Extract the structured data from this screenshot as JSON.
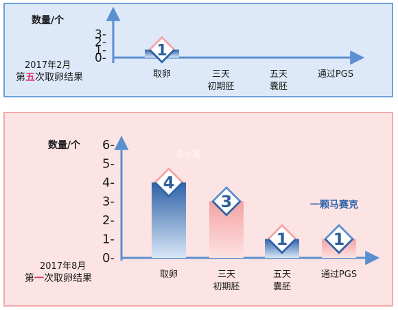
{
  "chart_data": [
    {
      "type": "bar",
      "ylabel": "数量/个",
      "ylim": [
        0,
        3
      ],
      "yticks": [
        "0-",
        "1-",
        "2-",
        "3-"
      ],
      "categories": [
        "取卵",
        "三天\n初期胚",
        "五天\n囊胚",
        "通过PGS"
      ],
      "values": [
        1,
        null,
        null,
        null
      ],
      "caption_line1": "2017年2月",
      "caption_line2": [
        "第",
        "五",
        "次取卵结果"
      ],
      "legend": "none",
      "grid": false
    },
    {
      "type": "bar",
      "ylabel": "数量/个",
      "ylim": [
        0,
        6
      ],
      "yticks": [
        "0-",
        "1-",
        "2-",
        "3-",
        "4-",
        "5-",
        "6-"
      ],
      "categories": [
        "取卵",
        "三天\n初期胚",
        "五天\n囊胚",
        "通过PGS"
      ],
      "values": [
        4,
        3,
        1,
        1
      ],
      "caption_line1": "2017年8月",
      "caption_line2": [
        "第",
        "一",
        "次取卵结果"
      ],
      "annotation": "一颗马赛克",
      "legend": "none",
      "grid": false
    }
  ],
  "watermark": "孕小帮",
  "colors": {
    "axis": "#5b8fd0",
    "panel1_bg": "#dde9f8",
    "panel1_border": "#6e9fd6",
    "panel2_bg": "#fde4e4",
    "panel2_border": "#f2a9a9",
    "bar_blue_dark": "#2e62a8",
    "bar_blue_light": "#d8e6f6",
    "bar_pink_dark": "#f4a3a3",
    "bar_pink_light": "#fde2e2",
    "highlight": "#e0306a",
    "annotation": "#2e62a8",
    "number": "#2e5f9e"
  }
}
